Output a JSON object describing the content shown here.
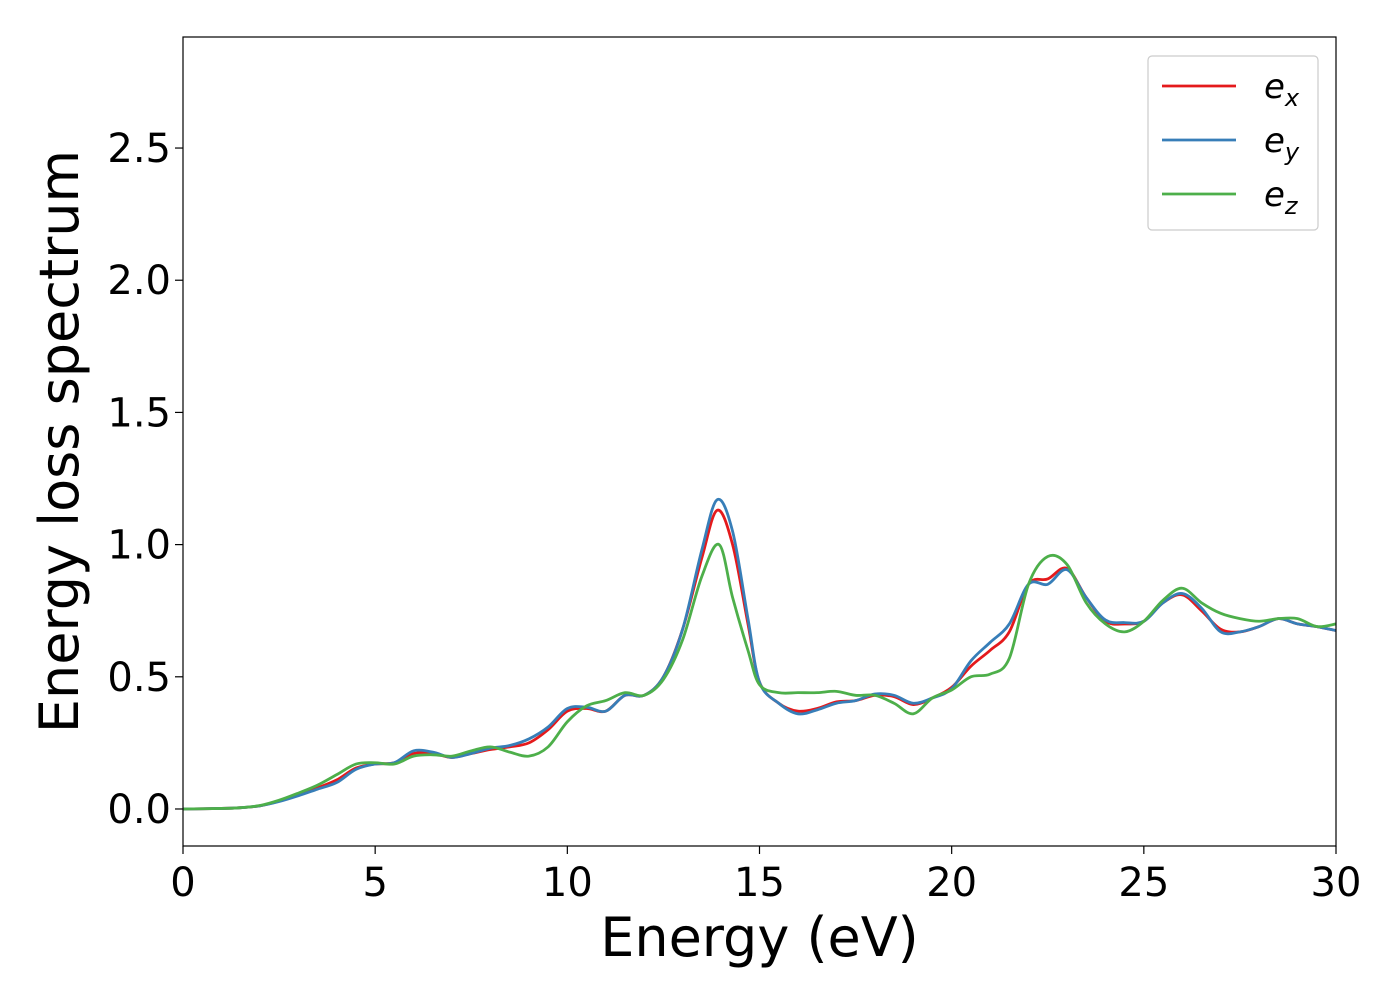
{
  "chart_data": {
    "type": "line",
    "xlabel": "Energy (eV)",
    "ylabel": "Energy loss spectrum",
    "xlim": [
      0,
      30
    ],
    "ylim": [
      -0.14,
      2.92
    ],
    "x_ticks": [
      "0",
      "5",
      "10",
      "15",
      "20",
      "25",
      "30"
    ],
    "y_ticks": [
      "0.0",
      "0.5",
      "1.0",
      "1.5",
      "2.0",
      "2.5"
    ],
    "grid": false,
    "legend_position": "top-right",
    "series": [
      {
        "name": "e_x",
        "label_base": "e",
        "label_sub": "x",
        "color": "#e41a1c",
        "x": [
          0,
          1,
          1.5,
          2,
          2.5,
          3,
          3.5,
          4,
          4.5,
          5,
          5.5,
          6,
          6.5,
          7,
          7.5,
          8,
          8.5,
          9,
          9.5,
          10,
          10.5,
          11,
          11.5,
          12,
          12.5,
          13,
          13.5,
          13.9,
          14.3,
          14.7,
          15,
          15.5,
          16,
          16.5,
          17,
          17.5,
          18,
          18.5,
          19,
          19.5,
          20,
          20.5,
          21,
          21.5,
          22,
          22.5,
          23,
          23.5,
          24,
          24.5,
          25,
          25.5,
          26,
          26.5,
          27,
          27.5,
          28,
          28.5,
          29,
          29.5,
          30
        ],
        "y": [
          0,
          0.002,
          0.005,
          0.012,
          0.03,
          0.055,
          0.08,
          0.11,
          0.155,
          0.17,
          0.175,
          0.21,
          0.21,
          0.195,
          0.21,
          0.225,
          0.235,
          0.25,
          0.3,
          0.37,
          0.38,
          0.37,
          0.43,
          0.43,
          0.5,
          0.68,
          0.95,
          1.13,
          1.0,
          0.7,
          0.48,
          0.4,
          0.37,
          0.38,
          0.405,
          0.41,
          0.43,
          0.425,
          0.395,
          0.42,
          0.46,
          0.54,
          0.6,
          0.67,
          0.85,
          0.87,
          0.91,
          0.8,
          0.71,
          0.7,
          0.71,
          0.78,
          0.81,
          0.75,
          0.68,
          0.67,
          0.69,
          0.72,
          0.7,
          0.69,
          0.675
        ]
      },
      {
        "name": "e_y",
        "label_base": "e",
        "label_sub": "y",
        "color": "#377eb8",
        "x": [
          0,
          1,
          1.5,
          2,
          2.5,
          3,
          3.5,
          4,
          4.5,
          5,
          5.5,
          6,
          6.5,
          7,
          7.5,
          8,
          8.5,
          9,
          9.5,
          10,
          10.5,
          11,
          11.5,
          12,
          12.5,
          13,
          13.5,
          13.9,
          14.3,
          14.7,
          15,
          15.5,
          16,
          16.5,
          17,
          17.5,
          18,
          18.5,
          19,
          19.5,
          20,
          20.5,
          21,
          21.5,
          22,
          22.5,
          23,
          23.5,
          24,
          24.5,
          25,
          25.5,
          26,
          26.5,
          27,
          27.5,
          28,
          28.5,
          29,
          29.5,
          30
        ],
        "y": [
          0,
          0.002,
          0.005,
          0.012,
          0.028,
          0.05,
          0.075,
          0.1,
          0.15,
          0.17,
          0.175,
          0.22,
          0.215,
          0.195,
          0.21,
          0.23,
          0.24,
          0.265,
          0.31,
          0.38,
          0.385,
          0.37,
          0.43,
          0.43,
          0.5,
          0.68,
          0.98,
          1.17,
          1.05,
          0.72,
          0.48,
          0.4,
          0.36,
          0.375,
          0.4,
          0.41,
          0.435,
          0.43,
          0.4,
          0.42,
          0.455,
          0.56,
          0.63,
          0.7,
          0.85,
          0.85,
          0.905,
          0.8,
          0.715,
          0.705,
          0.71,
          0.78,
          0.815,
          0.76,
          0.67,
          0.67,
          0.69,
          0.72,
          0.7,
          0.69,
          0.675
        ]
      },
      {
        "name": "e_z",
        "label_base": "e",
        "label_sub": "z",
        "color": "#4daf4a",
        "x": [
          0,
          1,
          1.5,
          2,
          2.5,
          3,
          3.5,
          4,
          4.5,
          5,
          5.5,
          6,
          6.5,
          7,
          7.5,
          8,
          8.5,
          9,
          9.5,
          10,
          10.5,
          11,
          11.5,
          12,
          12.5,
          13,
          13.5,
          13.95,
          14.3,
          14.7,
          15,
          15.5,
          16,
          16.5,
          17,
          17.5,
          18,
          18.5,
          19,
          19.5,
          20,
          20.5,
          21,
          21.5,
          22,
          22.5,
          23,
          23.5,
          24,
          24.5,
          25,
          25.5,
          26,
          26.5,
          27,
          27.5,
          28,
          28.5,
          29,
          29.5,
          30
        ],
        "y": [
          0,
          0.002,
          0.005,
          0.013,
          0.033,
          0.06,
          0.09,
          0.13,
          0.17,
          0.175,
          0.17,
          0.2,
          0.205,
          0.2,
          0.22,
          0.235,
          0.215,
          0.2,
          0.235,
          0.33,
          0.39,
          0.41,
          0.44,
          0.43,
          0.49,
          0.64,
          0.88,
          1.0,
          0.8,
          0.6,
          0.47,
          0.44,
          0.44,
          0.44,
          0.445,
          0.43,
          0.43,
          0.4,
          0.36,
          0.42,
          0.45,
          0.5,
          0.51,
          0.57,
          0.85,
          0.955,
          0.925,
          0.78,
          0.7,
          0.67,
          0.71,
          0.79,
          0.835,
          0.78,
          0.74,
          0.72,
          0.71,
          0.72,
          0.72,
          0.69,
          0.7
        ]
      }
    ]
  }
}
